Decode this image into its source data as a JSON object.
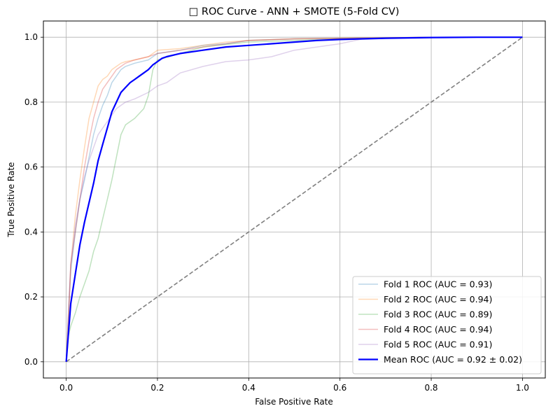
{
  "chart_data": {
    "type": "line",
    "title": "□ ROC Curve - ANN + SMOTE (5-Fold CV)",
    "xlabel": "False Positive Rate",
    "ylabel": "True Positive Rate",
    "xlim": [
      -0.05,
      1.05
    ],
    "ylim": [
      -0.05,
      1.05
    ],
    "xticks": [
      "0.0",
      "0.2",
      "0.4",
      "0.6",
      "0.8",
      "1.0"
    ],
    "yticks": [
      "0.0",
      "0.2",
      "0.4",
      "0.6",
      "0.8",
      "1.0"
    ],
    "grid": true,
    "legend_position": "lower-right",
    "series": [
      {
        "name": "Fold 1 ROC (AUC = 0.93)",
        "color": "#1f77b4",
        "opacity": 0.3,
        "linewidth": 1.5,
        "x": [
          0,
          0.005,
          0.01,
          0.02,
          0.03,
          0.04,
          0.05,
          0.06,
          0.07,
          0.08,
          0.09,
          0.1,
          0.11,
          0.12,
          0.13,
          0.15,
          0.18,
          0.2,
          0.25,
          0.3,
          0.35,
          0.4,
          0.5,
          0.6,
          0.7,
          0.8,
          1.0
        ],
        "y": [
          0,
          0.14,
          0.28,
          0.4,
          0.5,
          0.56,
          0.63,
          0.7,
          0.75,
          0.79,
          0.82,
          0.86,
          0.88,
          0.9,
          0.91,
          0.92,
          0.93,
          0.95,
          0.96,
          0.975,
          0.98,
          0.99,
          0.995,
          0.997,
          0.998,
          1.0,
          1.0
        ]
      },
      {
        "name": "Fold 2 ROC (AUC = 0.94)",
        "color": "#ff7f0e",
        "opacity": 0.3,
        "linewidth": 1.5,
        "x": [
          0,
          0.005,
          0.01,
          0.02,
          0.03,
          0.04,
          0.05,
          0.06,
          0.07,
          0.08,
          0.09,
          0.1,
          0.11,
          0.12,
          0.13,
          0.15,
          0.18,
          0.2,
          0.25,
          0.3,
          0.35,
          0.4,
          0.5,
          0.6,
          0.7,
          0.8,
          1.0
        ],
        "y": [
          0,
          0.12,
          0.3,
          0.45,
          0.56,
          0.66,
          0.75,
          0.8,
          0.85,
          0.87,
          0.88,
          0.9,
          0.91,
          0.92,
          0.925,
          0.93,
          0.94,
          0.96,
          0.965,
          0.975,
          0.985,
          0.99,
          0.995,
          0.997,
          0.998,
          1.0,
          1.0
        ]
      },
      {
        "name": "Fold 3 ROC (AUC = 0.89)",
        "color": "#2ca02c",
        "opacity": 0.3,
        "linewidth": 1.5,
        "x": [
          0,
          0.005,
          0.01,
          0.02,
          0.03,
          0.04,
          0.05,
          0.06,
          0.07,
          0.08,
          0.09,
          0.1,
          0.11,
          0.12,
          0.13,
          0.15,
          0.17,
          0.18,
          0.19,
          0.2,
          0.25,
          0.3,
          0.4,
          0.5,
          0.6,
          0.8,
          1.0
        ],
        "y": [
          0,
          0.08,
          0.11,
          0.15,
          0.2,
          0.24,
          0.28,
          0.34,
          0.38,
          0.44,
          0.5,
          0.56,
          0.63,
          0.7,
          0.73,
          0.75,
          0.78,
          0.82,
          0.9,
          0.93,
          0.95,
          0.97,
          0.985,
          0.99,
          0.995,
          1.0,
          1.0
        ]
      },
      {
        "name": "Fold 4 ROC (AUC = 0.94)",
        "color": "#d62728",
        "opacity": 0.3,
        "linewidth": 1.5,
        "x": [
          0,
          0.005,
          0.01,
          0.02,
          0.03,
          0.04,
          0.05,
          0.06,
          0.07,
          0.08,
          0.09,
          0.1,
          0.11,
          0.12,
          0.13,
          0.15,
          0.18,
          0.2,
          0.25,
          0.3,
          0.35,
          0.4,
          0.5,
          0.6,
          0.7,
          0.8,
          1.0
        ],
        "y": [
          0,
          0.15,
          0.3,
          0.4,
          0.5,
          0.6,
          0.68,
          0.75,
          0.8,
          0.84,
          0.86,
          0.88,
          0.9,
          0.91,
          0.92,
          0.93,
          0.94,
          0.95,
          0.96,
          0.97,
          0.98,
          0.99,
          0.995,
          0.997,
          0.998,
          1.0,
          1.0
        ]
      },
      {
        "name": "Fold 5 ROC (AUC = 0.91)",
        "color": "#9467bd",
        "opacity": 0.3,
        "linewidth": 1.5,
        "x": [
          0,
          0.005,
          0.01,
          0.02,
          0.03,
          0.04,
          0.05,
          0.06,
          0.07,
          0.08,
          0.09,
          0.1,
          0.11,
          0.12,
          0.13,
          0.15,
          0.18,
          0.2,
          0.22,
          0.25,
          0.3,
          0.35,
          0.4,
          0.45,
          0.5,
          0.6,
          0.65,
          0.8,
          1.0
        ],
        "y": [
          0,
          0.15,
          0.3,
          0.42,
          0.5,
          0.57,
          0.62,
          0.66,
          0.7,
          0.72,
          0.74,
          0.76,
          0.78,
          0.79,
          0.8,
          0.81,
          0.83,
          0.85,
          0.86,
          0.89,
          0.91,
          0.925,
          0.93,
          0.94,
          0.96,
          0.98,
          0.995,
          1.0,
          1.0
        ]
      },
      {
        "name": "Mean ROC (AUC = 0.92 ± 0.02)",
        "color": "#0000ff",
        "opacity": 1,
        "linewidth": 2.2,
        "x": [
          0,
          0.01,
          0.02,
          0.03,
          0.04,
          0.05,
          0.06,
          0.07,
          0.08,
          0.09,
          0.1,
          0.11,
          0.12,
          0.13,
          0.14,
          0.15,
          0.16,
          0.17,
          0.18,
          0.19,
          0.2,
          0.21,
          0.22,
          0.25,
          0.3,
          0.35,
          0.4,
          0.45,
          0.5,
          0.55,
          0.6,
          0.65,
          0.7,
          0.8,
          0.9,
          1.0
        ],
        "y": [
          0,
          0.18,
          0.27,
          0.36,
          0.43,
          0.49,
          0.55,
          0.62,
          0.67,
          0.72,
          0.77,
          0.8,
          0.83,
          0.845,
          0.86,
          0.87,
          0.88,
          0.89,
          0.9,
          0.915,
          0.925,
          0.935,
          0.94,
          0.95,
          0.96,
          0.97,
          0.975,
          0.98,
          0.985,
          0.99,
          0.993,
          0.995,
          0.997,
          0.999,
          1.0,
          1.0
        ]
      }
    ],
    "reference_line": {
      "x": [
        0,
        1
      ],
      "y": [
        0,
        1
      ],
      "color": "#808080",
      "style": "dashed"
    }
  }
}
